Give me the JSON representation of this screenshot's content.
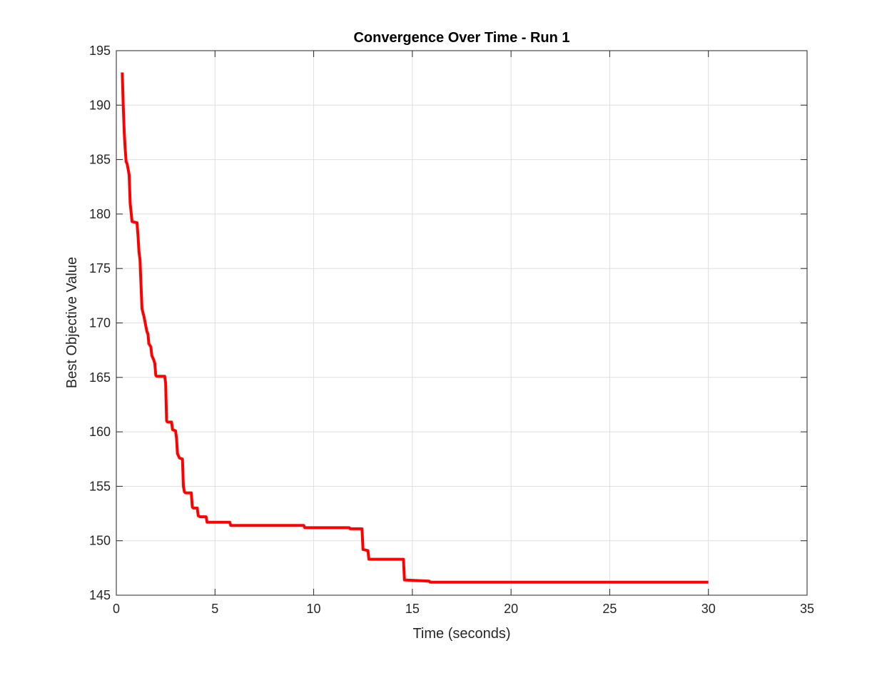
{
  "chart_data": {
    "type": "line",
    "title": "Convergence Over Time - Run 1",
    "xlabel": "Time (seconds)",
    "ylabel": "Best Objective Value",
    "xlim": [
      0,
      35
    ],
    "ylim": [
      145,
      195
    ],
    "xticks": [
      0,
      5,
      10,
      15,
      20,
      25,
      30,
      35
    ],
    "yticks": [
      145,
      150,
      155,
      160,
      165,
      170,
      175,
      180,
      185,
      190,
      195
    ],
    "grid": true,
    "legend": "none",
    "series": [
      {
        "color": "#ff0000",
        "x": [
          0.3,
          0.35,
          0.4,
          0.45,
          0.5,
          0.55,
          0.65,
          0.7,
          0.8,
          1.05,
          1.1,
          1.15,
          1.2,
          1.25,
          1.3,
          1.4,
          1.55,
          1.6,
          1.65,
          1.75,
          1.8,
          1.9,
          1.95,
          2.0,
          2.05,
          2.1,
          2.45,
          2.5,
          2.55,
          2.6,
          2.8,
          2.85,
          3.0,
          3.05,
          3.1,
          3.15,
          3.2,
          3.35,
          3.4,
          3.45,
          3.5,
          3.8,
          3.85,
          3.9,
          4.1,
          4.15,
          4.25,
          4.55,
          4.6,
          5.75,
          5.8,
          9.5,
          9.55,
          11.8,
          11.85,
          12.45,
          12.5,
          12.75,
          12.8,
          14.55,
          14.6,
          15.85,
          15.9,
          30.0
        ],
        "y": [
          193.0,
          190.0,
          187.5,
          186.0,
          184.8,
          184.6,
          183.6,
          181.0,
          179.3,
          179.2,
          178.0,
          176.5,
          175.8,
          173.5,
          171.3,
          170.6,
          169.2,
          169.0,
          168.1,
          167.8,
          167.0,
          166.6,
          166.3,
          165.2,
          165.1,
          165.1,
          165.1,
          164.5,
          161.0,
          160.9,
          160.9,
          160.2,
          160.1,
          159.4,
          158.0,
          157.8,
          157.6,
          157.5,
          155.0,
          154.5,
          154.4,
          154.4,
          153.1,
          153.0,
          153.0,
          152.3,
          152.2,
          152.2,
          151.7,
          151.7,
          151.4,
          151.4,
          151.2,
          151.2,
          151.1,
          151.1,
          149.2,
          149.1,
          148.3,
          148.3,
          146.4,
          146.3,
          146.2,
          146.2
        ]
      }
    ]
  }
}
